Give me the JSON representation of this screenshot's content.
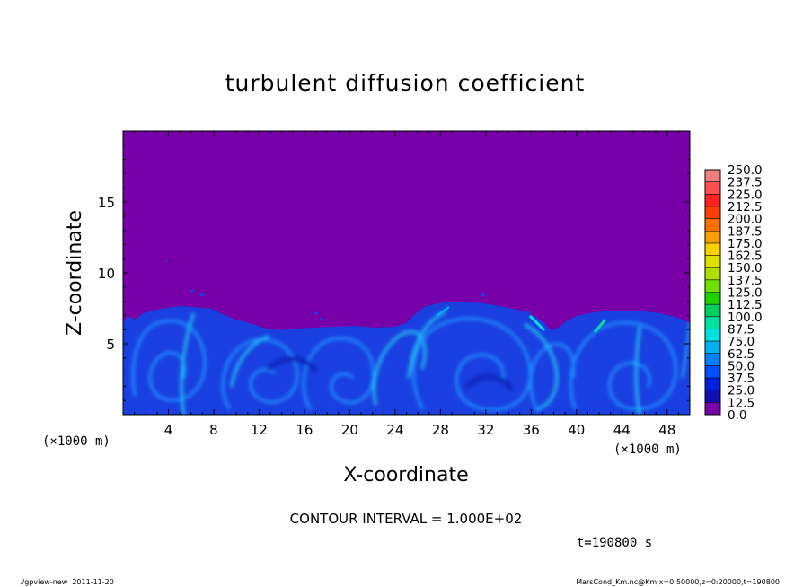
{
  "chart_data": {
    "type": "heatmap",
    "title": "turbulent diffusion coefficient",
    "xlabel": "X-coordinate",
    "ylabel": "Z-coordinate",
    "x_unit_left": "(×1000 m)",
    "x_unit_right": "(×1000 m)",
    "xlim": [
      0,
      50
    ],
    "ylim": [
      0,
      20
    ],
    "x_ticks": [
      "4",
      "8",
      "12",
      "16",
      "20",
      "24",
      "28",
      "32",
      "36",
      "40",
      "44",
      "48"
    ],
    "x_tick_values": [
      4,
      8,
      12,
      16,
      20,
      24,
      28,
      32,
      36,
      40,
      44,
      48
    ],
    "y_ticks": [
      "5",
      "10",
      "15"
    ],
    "y_tick_values": [
      5,
      10,
      15
    ],
    "colorbar": {
      "min": 0,
      "max": 250,
      "step": 12.5,
      "labels": [
        "250.0",
        "237.5",
        "225.0",
        "212.5",
        "200.0",
        "187.5",
        "175.0",
        "162.5",
        "150.0",
        "137.5",
        "125.0",
        "112.5",
        "100.0",
        "87.5",
        "75.0",
        "62.5",
        "50.0",
        "37.5",
        "25.0",
        "12.5",
        "0.0"
      ],
      "colors": [
        "#f08080",
        "#ff5050",
        "#ff2020",
        "#ff4000",
        "#ff7000",
        "#ffa000",
        "#ffd000",
        "#e0e000",
        "#b0e000",
        "#70e000",
        "#20d000",
        "#00d060",
        "#00e0a0",
        "#00e0e0",
        "#00b0f0",
        "#0080ff",
        "#0050ff",
        "#0020e0",
        "#1010b0",
        "#7800a8"
      ]
    },
    "background_color": "#7800a8",
    "contour_interval_text": "CONTOUR INTERVAL = 1.000E+02",
    "time_text": "t=190800 s"
  },
  "footer": {
    "left": "./gpview-new  2011-11-20",
    "right": "MarsCond_Km.nc@Km,x=0:50000,z=0:20000,t=190800"
  }
}
